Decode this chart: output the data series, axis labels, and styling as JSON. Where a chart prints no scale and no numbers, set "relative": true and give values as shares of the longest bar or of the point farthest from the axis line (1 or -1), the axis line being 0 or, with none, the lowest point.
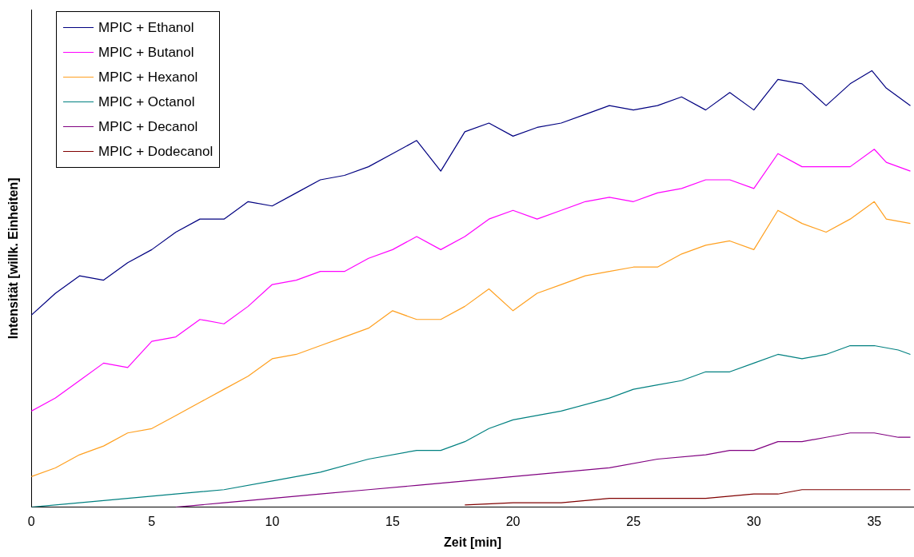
{
  "chart_data": {
    "type": "line",
    "xlabel": "Zeit [min]",
    "ylabel": "Intensität [willk. Einheiten]",
    "relative": true,
    "xlim": [
      0,
      36.65
    ],
    "xticks": [
      0,
      5,
      10,
      15,
      20,
      25,
      30,
      35
    ],
    "legend": "top left",
    "grid": false,
    "series": [
      {
        "name": "MPIC + Ethanol",
        "color": "#000080",
        "x": [
          0,
          1,
          2,
          3,
          4,
          5,
          6,
          7,
          8,
          9,
          10,
          11,
          12,
          13,
          14,
          15,
          16,
          17,
          18,
          19,
          20,
          21,
          22,
          23,
          24,
          25,
          26,
          27,
          28,
          29,
          30,
          31,
          32,
          33,
          34,
          34.9,
          35.5,
          36.5
        ],
        "values": [
          0.44,
          0.49,
          0.53,
          0.52,
          0.56,
          0.59,
          0.63,
          0.66,
          0.66,
          0.7,
          0.69,
          0.72,
          0.75,
          0.76,
          0.78,
          0.81,
          0.84,
          0.77,
          0.86,
          0.88,
          0.85,
          0.87,
          0.88,
          0.9,
          0.92,
          0.91,
          0.92,
          0.94,
          0.91,
          0.95,
          0.91,
          0.98,
          0.97,
          0.92,
          0.97,
          1,
          0.96,
          0.92
        ]
      },
      {
        "name": "MPIC + Butanol",
        "color": "#ff00ff",
        "x": [
          0,
          1,
          2,
          3,
          4,
          5,
          6,
          7,
          8,
          9,
          10,
          11,
          12,
          13,
          14,
          15,
          16,
          17,
          18,
          19,
          20,
          21,
          22,
          23,
          24,
          25,
          26,
          27,
          28,
          29,
          30,
          31,
          32,
          33,
          34,
          35,
          35.5,
          36.5
        ],
        "values": [
          0.22,
          0.25,
          0.29,
          0.33,
          0.32,
          0.38,
          0.39,
          0.43,
          0.42,
          0.46,
          0.51,
          0.52,
          0.54,
          0.54,
          0.57,
          0.59,
          0.62,
          0.59,
          0.62,
          0.66,
          0.68,
          0.66,
          0.68,
          0.7,
          0.71,
          0.7,
          0.72,
          0.73,
          0.75,
          0.75,
          0.73,
          0.81,
          0.78,
          0.78,
          0.78,
          0.82,
          0.79,
          0.77
        ]
      },
      {
        "name": "MPIC + Hexanol",
        "color": "#ffa020",
        "x": [
          0,
          1,
          2,
          3,
          4,
          5,
          6,
          7,
          8,
          9,
          10,
          11,
          12,
          13,
          14,
          15,
          16,
          17,
          18,
          19,
          20,
          21,
          22,
          23,
          24,
          25,
          26,
          27,
          28,
          29,
          30,
          31,
          32,
          33,
          34,
          35,
          35.5,
          36.5
        ],
        "values": [
          0.07,
          0.09,
          0.12,
          0.14,
          0.17,
          0.18,
          0.21,
          0.24,
          0.27,
          0.3,
          0.34,
          0.35,
          0.37,
          0.39,
          0.41,
          0.45,
          0.43,
          0.43,
          0.46,
          0.5,
          0.45,
          0.49,
          0.51,
          0.53,
          0.54,
          0.55,
          0.55,
          0.58,
          0.6,
          0.61,
          0.59,
          0.68,
          0.65,
          0.63,
          0.66,
          0.7,
          0.66,
          0.65
        ]
      },
      {
        "name": "MPIC + Octanol",
        "color": "#008080",
        "x": [
          0,
          2,
          4,
          6,
          8,
          10,
          12,
          14,
          16,
          17,
          18,
          19,
          20,
          22,
          24,
          25,
          26,
          27,
          28,
          29,
          30,
          31,
          32,
          33,
          34,
          35,
          36,
          36.5
        ],
        "values": [
          0,
          0.01,
          0.02,
          0.03,
          0.04,
          0.06,
          0.08,
          0.11,
          0.13,
          0.13,
          0.15,
          0.18,
          0.2,
          0.22,
          0.25,
          0.27,
          0.28,
          0.29,
          0.31,
          0.31,
          0.33,
          0.35,
          0.34,
          0.35,
          0.37,
          0.37,
          0.36,
          0.35
        ]
      },
      {
        "name": "MPIC + Decanol",
        "color": "#800080",
        "x": [
          6,
          8,
          10,
          12,
          14,
          16,
          18,
          20,
          22,
          24,
          26,
          28,
          29,
          30,
          31,
          32,
          33,
          34,
          35,
          36,
          36.5
        ],
        "values": [
          0,
          0.01,
          0.02,
          0.03,
          0.04,
          0.05,
          0.06,
          0.07,
          0.08,
          0.09,
          0.11,
          0.12,
          0.13,
          0.13,
          0.15,
          0.15,
          0.16,
          0.17,
          0.17,
          0.16,
          0.16
        ]
      },
      {
        "name": "MPIC + Dodecanol",
        "color": "#800000",
        "x": [
          18,
          20,
          22,
          24,
          26,
          28,
          30,
          31,
          32,
          33,
          34,
          35,
          36.5
        ],
        "values": [
          0.005,
          0.01,
          0.01,
          0.02,
          0.02,
          0.02,
          0.03,
          0.03,
          0.04,
          0.04,
          0.04,
          0.04,
          0.04
        ]
      }
    ]
  }
}
